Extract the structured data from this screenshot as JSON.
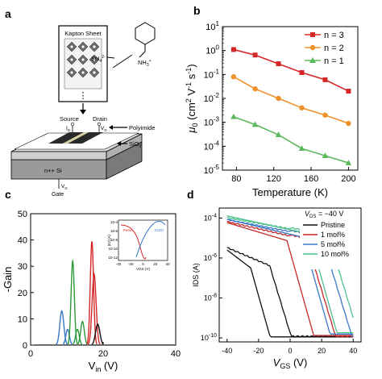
{
  "panels": {
    "a": {
      "letter": "a",
      "kapton_label": "Kapton Sheet",
      "snl_label": "SnI",
      "snl_sub": "4",
      "snl_sup": "2-",
      "nh3_label": "NH",
      "nh3_sub": "3",
      "nh3_sup": "+",
      "source_label": "Source",
      "drain_label": "Drain",
      "id_label": "I",
      "id_sub": "D",
      "vd_label": "V",
      "vd_sub": "D",
      "polyimide_label": "Polyimide",
      "sio2_label": "SiO",
      "sio2_sub": "2",
      "nsi_label": "n++ Si",
      "vg_label": "V",
      "vg_sub": "G",
      "gate_label": "Gate",
      "dots": "⋮"
    },
    "b": {
      "letter": "b"
    },
    "c": {
      "letter": "c"
    },
    "d": {
      "letter": "d"
    }
  },
  "chart_data": [
    {
      "panel": "b",
      "type": "line",
      "xlabel": "Temperature (K)",
      "ylabel": "μ0 (cm2 V-1 s-1)",
      "ylabel_parts": {
        "mu": "μ",
        "sub": "0",
        "unit1": " (cm",
        "sup1": "2",
        "unit2": " V",
        "sup2": "-1",
        "unit3": " s",
        "sup3": "-1",
        "close": ")"
      },
      "xlim": [
        65,
        210
      ],
      "ylim_log10": [
        -5,
        1
      ],
      "yscale": "log",
      "x_ticks": [
        80,
        120,
        160,
        200
      ],
      "y_ticks_exp": [
        -5,
        -4,
        -3,
        -2,
        -1,
        0,
        1
      ],
      "y_tick_base": "10",
      "legend_position": "top-right",
      "series": [
        {
          "name": "n = 3",
          "color": "#d62728",
          "marker": "square",
          "x": [
            77,
            100,
            125,
            150,
            175,
            200
          ],
          "y": [
            1.1,
            0.65,
            0.28,
            0.12,
            0.06,
            0.02
          ]
        },
        {
          "name": "n = 2",
          "color": "#f0902a",
          "marker": "circle",
          "x": [
            77,
            100,
            125,
            150,
            175,
            200
          ],
          "y": [
            0.08,
            0.025,
            0.01,
            0.004,
            0.002,
            0.0009
          ]
        },
        {
          "name": "n = 1",
          "color": "#5cb85c",
          "marker": "triangle",
          "x": [
            77,
            100,
            125,
            150,
            175,
            200
          ],
          "y": [
            0.0017,
            0.0008,
            0.0003,
            8e-05,
            4e-05,
            2e-05
          ]
        }
      ]
    },
    {
      "panel": "c",
      "type": "line",
      "xlabel": "Vin (V)",
      "xlabel_parts": {
        "v": "V",
        "sub": "in",
        "unit": " (V)"
      },
      "ylabel": "-Gain",
      "xlim": [
        0,
        40
      ],
      "ylim": [
        0,
        50
      ],
      "x_ticks": [
        0,
        20,
        40
      ],
      "y_ticks": [
        0,
        10,
        20,
        30,
        40,
        50
      ],
      "peaks": [
        {
          "color": "#3a78c8",
          "center": 8.6,
          "height": 13,
          "width": 0.55
        },
        {
          "color": "#3a78c8",
          "center": 10.2,
          "height": 6,
          "width": 0.5
        },
        {
          "color": "#2b9a3b",
          "center": 11.6,
          "height": 32,
          "width": 0.45
        },
        {
          "color": "#2b9a3b",
          "center": 12.9,
          "height": 6,
          "width": 0.5
        },
        {
          "color": "#2b9a3b",
          "center": 14.3,
          "height": 9,
          "width": 0.5
        },
        {
          "color": "#d62728",
          "center": 16.9,
          "height": 39.5,
          "width": 0.45
        },
        {
          "color": "#d62728",
          "center": 17.5,
          "height": 27,
          "width": 0.55
        },
        {
          "color": "#111111",
          "center": 18.5,
          "height": 8,
          "width": 0.6
        }
      ],
      "inset": {
        "xlabel": "VGS (V)",
        "ylabel": "|ID| (A)",
        "xlim": [
          -40,
          40
        ],
        "x_ticks": [
          -40,
          -20,
          0,
          20,
          40
        ],
        "y_tick_exps": [
          -12,
          -10,
          -8,
          -6,
          -4
        ],
        "curves": [
          {
            "name": "Pervo",
            "color": "#d62728"
          },
          {
            "name": "IGZO",
            "color": "#3a78c8"
          }
        ]
      }
    },
    {
      "panel": "d",
      "type": "line",
      "xlabel": "VGS (V)",
      "xlabel_parts": {
        "v": "V",
        "sub": "GS",
        "unit": " (V)"
      },
      "ylabel": "IDS (A)",
      "xlim": [
        -45,
        45
      ],
      "ylim_log10": [
        -10.2,
        -3.5
      ],
      "yscale": "log",
      "x_ticks": [
        -40,
        -20,
        0,
        20,
        40
      ],
      "y_ticks_exp": [
        -10,
        -8,
        -6,
        -4
      ],
      "y_tick_base": "10",
      "legend_title": "VDS = −40 V",
      "legend_title_parts": {
        "v": "V",
        "sub": "DS",
        "rest": " = −40 V"
      },
      "legend_position": "top-right",
      "series": [
        {
          "name": "Pristine",
          "color": "#111111",
          "on_log": -5.6,
          "vth": -25,
          "off_start": -16
        },
        {
          "name": "1 mol%",
          "color": "#c62828",
          "on_log": -4.3,
          "vth": -2,
          "off_start": 10
        },
        {
          "name": "5 mol%",
          "color": "#3a78c8",
          "on_log": -4.2,
          "vth": 8,
          "off_start": 25
        },
        {
          "name": "10 mol%",
          "color": "#4cc08a",
          "on_log": -4.1,
          "vth": 12,
          "off_start": 30
        }
      ]
    }
  ]
}
